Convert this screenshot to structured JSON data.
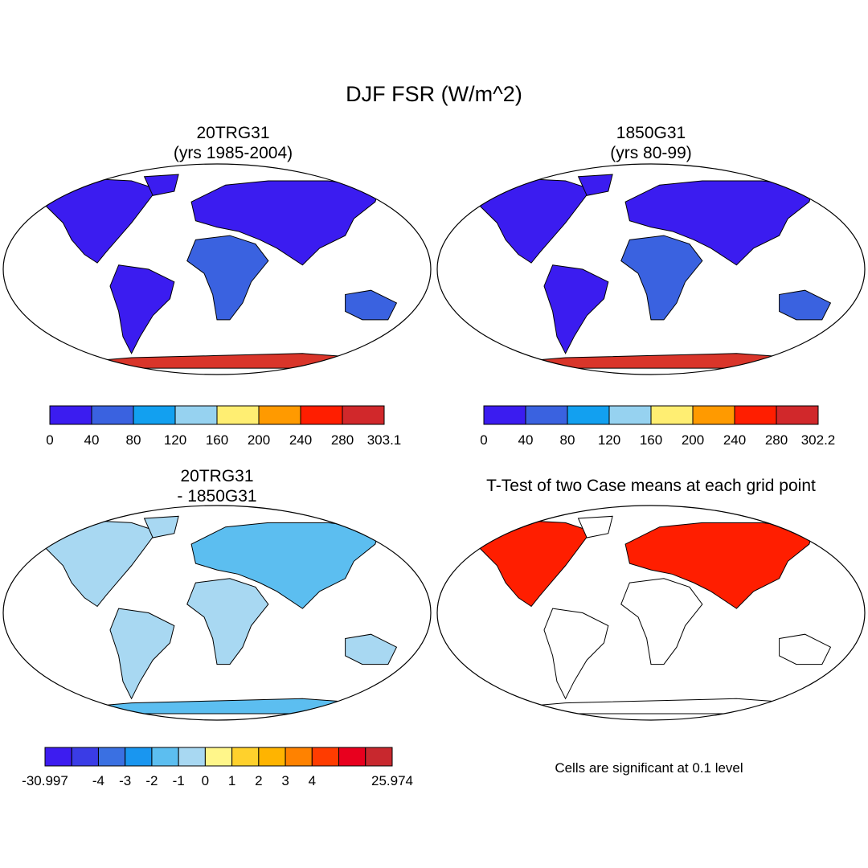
{
  "figure": {
    "title": "DJF FSR (W/m^2)"
  },
  "panels": [
    {
      "id": "p1",
      "title": "20TRG31",
      "subtitle": "(yrs 1985-2004)",
      "colorbar": {
        "colors": [
          "#3b1cf0",
          "#3a62e0",
          "#12a0f0",
          "#96d2f0",
          "#ffee72",
          "#ff9a00",
          "#ff1e00",
          "#d1282b"
        ],
        "labels": [
          "0",
          "40",
          "80",
          "120",
          "160",
          "200",
          "240",
          "280",
          "303.1"
        ]
      }
    },
    {
      "id": "p2",
      "title": "1850G31",
      "subtitle": "(yrs 80-99)",
      "colorbar": {
        "colors": [
          "#3b1cf0",
          "#3a62e0",
          "#12a0f0",
          "#96d2f0",
          "#ffee72",
          "#ff9a00",
          "#ff1e00",
          "#d1282b"
        ],
        "labels": [
          "0",
          "40",
          "80",
          "120",
          "160",
          "200",
          "240",
          "280",
          "302.2"
        ]
      }
    },
    {
      "id": "p3",
      "title": "20TRG31",
      "subtitle": "- 1850G31",
      "colorbar": {
        "colors": [
          "#3d1cf0",
          "#3a3ce6",
          "#3a70e2",
          "#1996f0",
          "#5cbef0",
          "#a8d8f2",
          "#fff68a",
          "#ffd12c",
          "#ffb400",
          "#ff8200",
          "#ff3c00",
          "#e8001e",
          "#c8282e"
        ],
        "labels": [
          "-30.997",
          "-4",
          "-3",
          "-2",
          "-1",
          "0",
          "1",
          "2",
          "3",
          "4",
          "25.974"
        ]
      }
    },
    {
      "id": "p4",
      "title": "T-Test of two Case means at each grid point",
      "note": "Cells are significant at 0.1 level"
    }
  ]
}
